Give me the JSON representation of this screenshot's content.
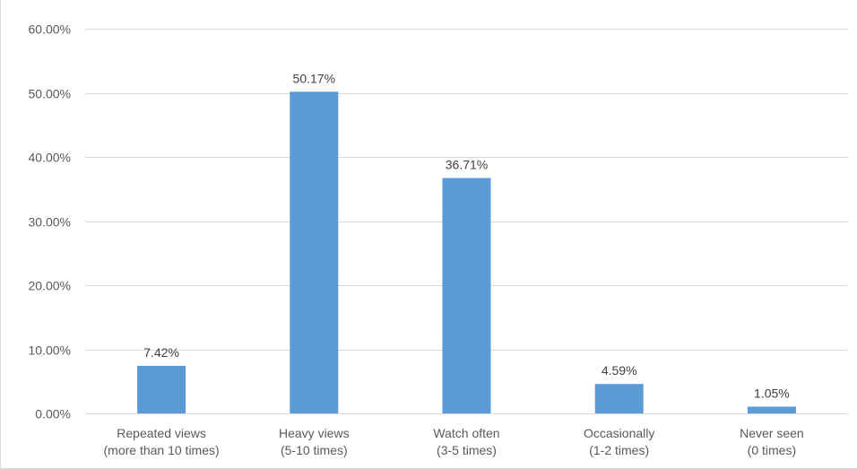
{
  "chart_data": {
    "type": "bar",
    "categories": [
      [
        "Repeated views",
        "(more than 10 times)"
      ],
      [
        "Heavy views",
        "(5-10 times)"
      ],
      [
        "Watch often",
        "(3-5 times)"
      ],
      [
        "Occasionally",
        "(1-2 times)"
      ],
      [
        "Never seen",
        "(0 times)"
      ]
    ],
    "values": [
      7.42,
      50.17,
      36.71,
      4.59,
      1.05
    ],
    "data_labels": [
      "7.42%",
      "50.17%",
      "36.71%",
      "4.59%",
      "1.05%"
    ],
    "ylim": [
      0,
      60
    ],
    "yticks": [
      0,
      10,
      20,
      30,
      40,
      50,
      60
    ],
    "ytick_labels": [
      "0.00%",
      "10.00%",
      "20.00%",
      "30.00%",
      "40.00%",
      "50.00%",
      "60.00%"
    ],
    "title": "",
    "xlabel": "",
    "ylabel": "",
    "grid": true,
    "legend": "none",
    "bar_color": "#5b9bd5"
  }
}
